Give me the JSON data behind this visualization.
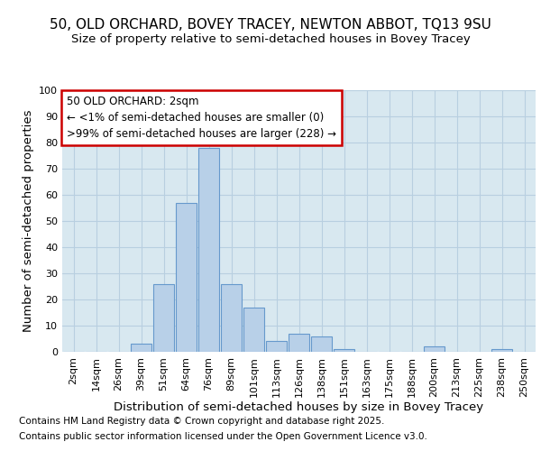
{
  "title_line1": "50, OLD ORCHARD, BOVEY TRACEY, NEWTON ABBOT, TQ13 9SU",
  "title_line2": "Size of property relative to semi-detached houses in Bovey Tracey",
  "xlabel": "Distribution of semi-detached houses by size in Bovey Tracey",
  "ylabel": "Number of semi-detached properties",
  "categories": [
    "2sqm",
    "14sqm",
    "26sqm",
    "39sqm",
    "51sqm",
    "64sqm",
    "76sqm",
    "89sqm",
    "101sqm",
    "113sqm",
    "126sqm",
    "138sqm",
    "151sqm",
    "163sqm",
    "175sqm",
    "188sqm",
    "200sqm",
    "213sqm",
    "225sqm",
    "238sqm",
    "250sqm"
  ],
  "values": [
    0,
    0,
    0,
    3,
    26,
    57,
    78,
    26,
    17,
    4,
    7,
    6,
    1,
    0,
    0,
    0,
    2,
    0,
    0,
    1,
    0
  ],
  "bar_color": "#b8d0e8",
  "bar_edge_color": "#6699cc",
  "highlight_box_text_line1": "50 OLD ORCHARD: 2sqm",
  "highlight_box_text_line2": "← <1% of semi-detached houses are smaller (0)",
  "highlight_box_text_line3": ">99% of semi-detached houses are larger (228) →",
  "box_edge_color": "#cc0000",
  "ylim": [
    0,
    100
  ],
  "yticks": [
    0,
    10,
    20,
    30,
    40,
    50,
    60,
    70,
    80,
    90,
    100
  ],
  "grid_color": "#b8cfe0",
  "background_color": "#d8e8f0",
  "footer_line1": "Contains HM Land Registry data © Crown copyright and database right 2025.",
  "footer_line2": "Contains public sector information licensed under the Open Government Licence v3.0.",
  "title_fontsize": 11,
  "subtitle_fontsize": 9.5,
  "axis_label_fontsize": 9.5,
  "tick_fontsize": 8,
  "footer_fontsize": 7.5,
  "annotation_fontsize": 8.5
}
